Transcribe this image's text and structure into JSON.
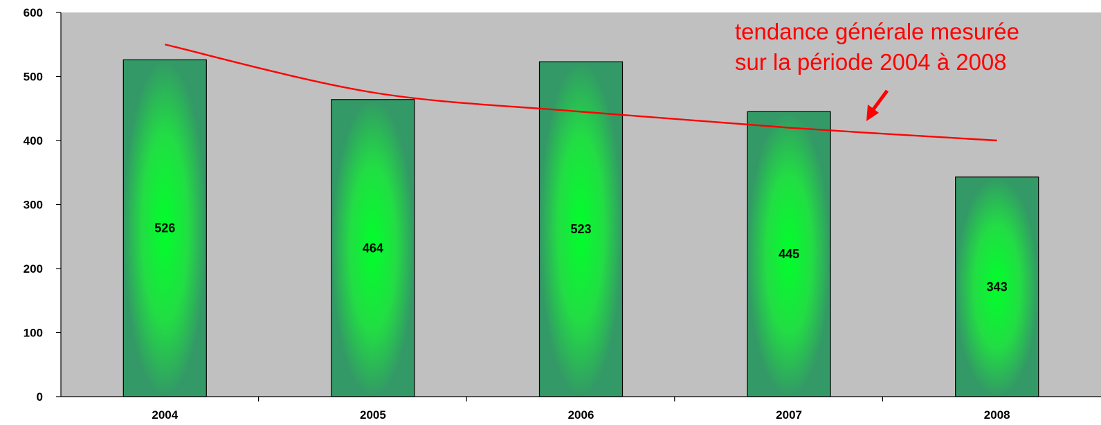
{
  "chart_data": {
    "type": "bar",
    "categories": [
      "2004",
      "2005",
      "2006",
      "2007",
      "2008"
    ],
    "values": [
      526,
      464,
      523,
      445,
      343
    ],
    "data_labels": [
      "526",
      "464",
      "523",
      "445",
      "343"
    ],
    "ylim": [
      0,
      600
    ],
    "y_ticks": [
      "0",
      "100",
      "200",
      "300",
      "400",
      "500",
      "600"
    ],
    "grid": false,
    "legend": "none",
    "trendline": {
      "type": "line",
      "x": [
        "2004",
        "2005",
        "2006",
        "2007",
        "2008"
      ],
      "values": [
        550,
        475,
        445,
        420,
        400
      ]
    },
    "annotation": {
      "lines": [
        "tendance générale mesurée",
        "sur la période 2004 à 2008"
      ],
      "color": "#ff0000"
    },
    "colors": {
      "plot_background": "#c0c0c0",
      "bar_center": "#00ff2a",
      "bar_edge": "#339966",
      "trend": "#ff0000"
    }
  }
}
